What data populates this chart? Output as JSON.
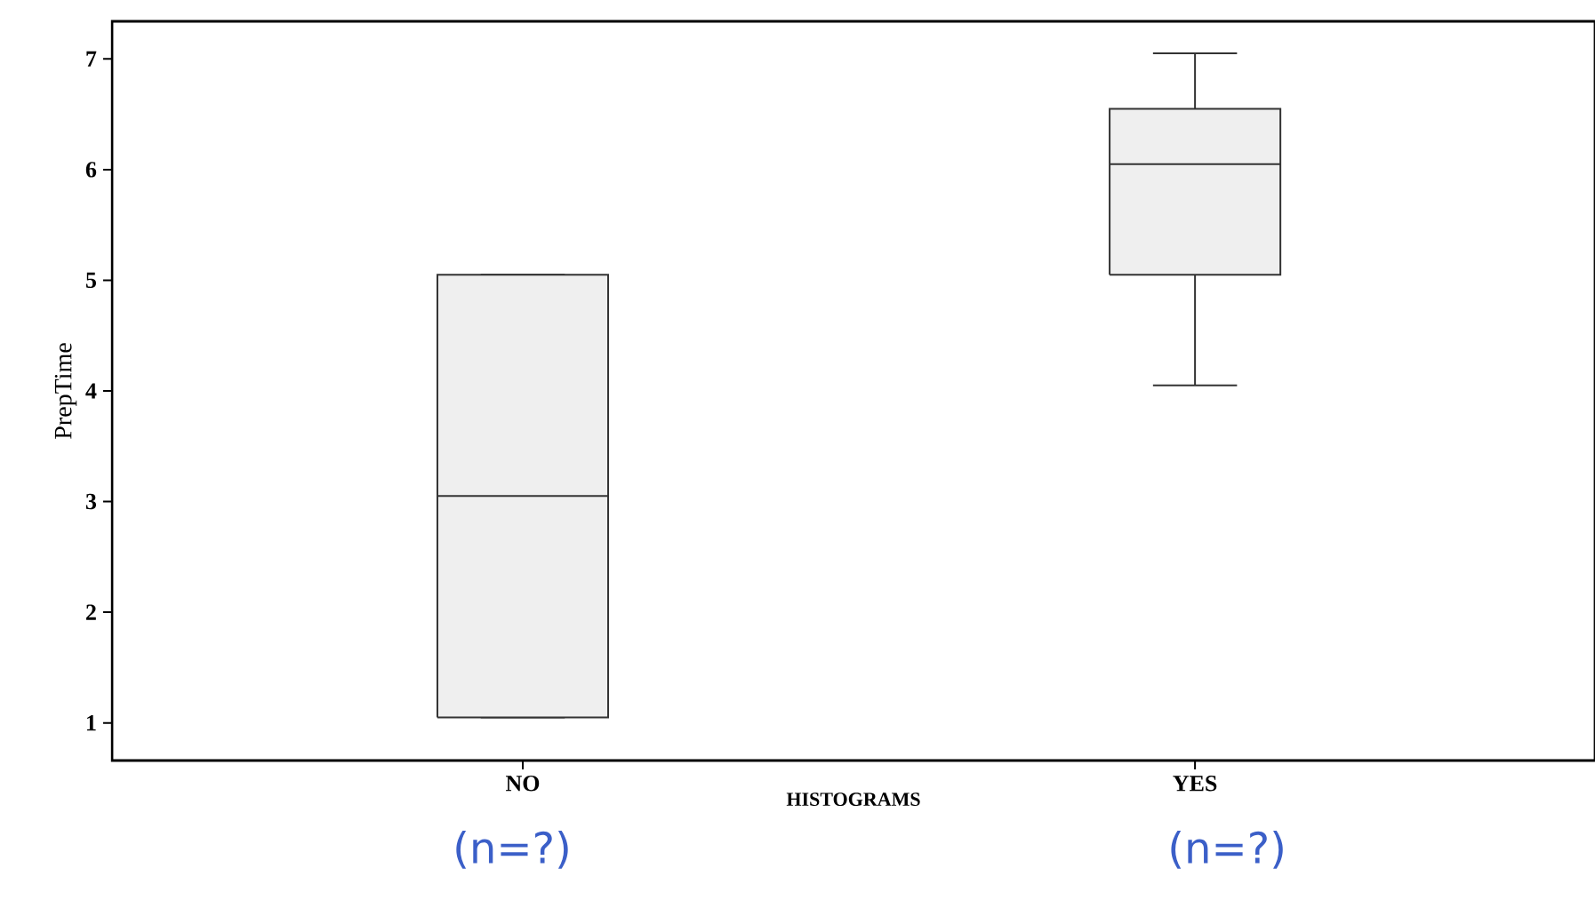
{
  "chart_data": {
    "type": "box",
    "xlabel": "HISTOGRAMS",
    "ylabel": "PrepTime",
    "categories": [
      "NO",
      "YES"
    ],
    "color": "#efefef",
    "boxes": [
      {
        "low": 1.05,
        "q1": 1.05,
        "median": 3.05,
        "q3": 5.05,
        "high": 5.05
      },
      {
        "low": 4.05,
        "q1": 5.05,
        "median": 6.05,
        "q3": 6.55,
        "high": 7.05
      }
    ],
    "ylim": [
      0.66,
      7.34
    ],
    "yticks": [
      1,
      2,
      3,
      4,
      5,
      6,
      7
    ],
    "annotations": [
      "(n=?)",
      "(n=?)"
    ]
  }
}
